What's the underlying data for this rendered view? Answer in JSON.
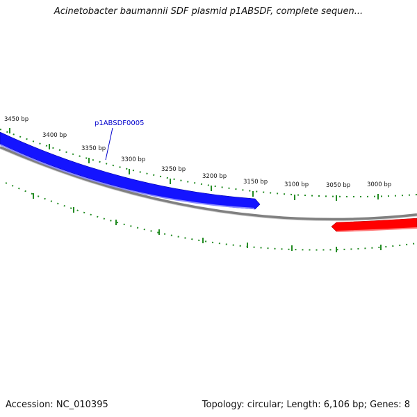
{
  "title": "Acinetobacter baumannii SDF plasmid p1ABSDF, complete sequen...",
  "footer": {
    "accession": "Accession: NC_010395",
    "summary": "Topology: circular; Length: 6,106 bp; Genes: 8"
  },
  "map": {
    "ticks": [
      {
        "label": "3450 bp"
      },
      {
        "label": "3400 bp"
      },
      {
        "label": "3350 bp"
      },
      {
        "label": "3300 bp"
      },
      {
        "label": "3250 bp"
      },
      {
        "label": "3200 bp"
      },
      {
        "label": "3150 bp"
      },
      {
        "label": "3100 bp"
      },
      {
        "label": "3050 bp"
      },
      {
        "label": "3000 bp"
      }
    ],
    "genes": [
      {
        "label": "p1ABSDF0005",
        "strand": "forward",
        "color": "#0000ff"
      },
      {
        "strand": "reverse",
        "color": "#ff0000"
      }
    ],
    "colors": {
      "backbone": "#808080",
      "ticks": "#228b22",
      "label": "#0000cc"
    }
  }
}
